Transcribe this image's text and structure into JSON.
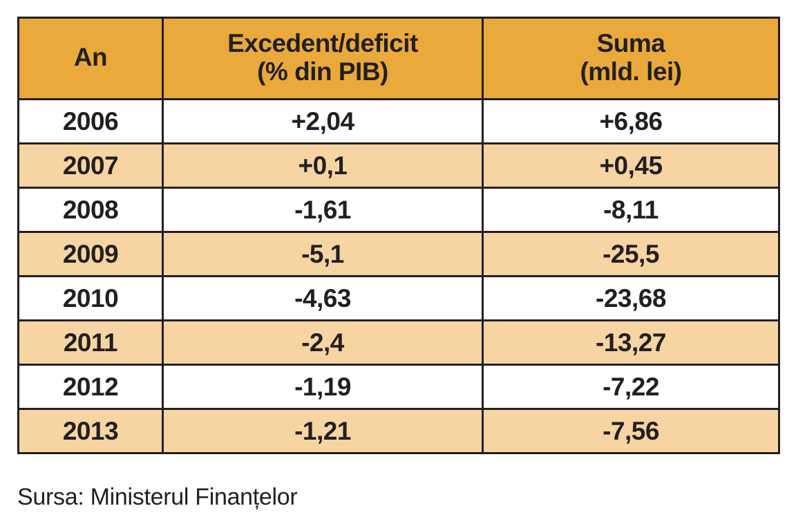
{
  "table": {
    "headers": [
      {
        "line1": "An",
        "line2": ""
      },
      {
        "line1": "Excedent/deficit",
        "line2": "(% din PIB)"
      },
      {
        "line1": "Suma",
        "line2": "(mld. lei)"
      }
    ],
    "rows": [
      {
        "year": "2006",
        "pct": "+2,04",
        "sum": "+6,86"
      },
      {
        "year": "2007",
        "pct": "+0,1",
        "sum": "+0,45"
      },
      {
        "year": "2008",
        "pct": "-1,61",
        "sum": "-8,11"
      },
      {
        "year": "2009",
        "pct": "-5,1",
        "sum": "-25,5"
      },
      {
        "year": "2010",
        "pct": "-4,63",
        "sum": "-23,68"
      },
      {
        "year": "2011",
        "pct": "-2,4",
        "sum": "-13,27"
      },
      {
        "year": "2012",
        "pct": "-1,19",
        "sum": "-7,22"
      },
      {
        "year": "2013",
        "pct": "-1,21",
        "sum": "-7,56"
      }
    ]
  },
  "source": "Sursa: Ministerul Finanțelor",
  "colors": {
    "header_bg": "#eaa93b",
    "stripe_bg": "#f6d5a3",
    "row_bg": "#ffffff",
    "border": "#231f20",
    "text": "#231f20"
  },
  "chart_data": {
    "type": "table",
    "columns": [
      "An",
      "Excedent/deficit (% din PIB)",
      "Suma (mld. lei)"
    ],
    "x": [
      2006,
      2007,
      2008,
      2009,
      2010,
      2011,
      2012,
      2013
    ],
    "series": [
      {
        "name": "Excedent/deficit (% din PIB)",
        "values": [
          2.04,
          0.1,
          -1.61,
          -5.1,
          -4.63,
          -2.4,
          -1.19,
          -1.21
        ]
      },
      {
        "name": "Suma (mld. lei)",
        "values": [
          6.86,
          0.45,
          -8.11,
          -25.5,
          -23.68,
          -13.27,
          -7.22,
          -7.56
        ]
      }
    ]
  }
}
